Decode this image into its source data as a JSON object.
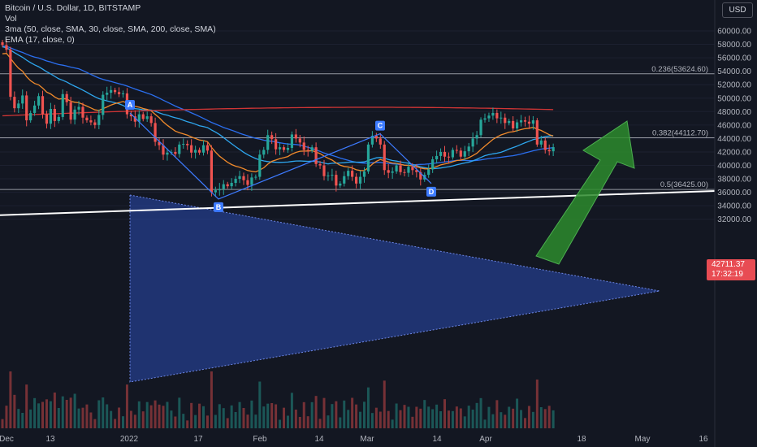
{
  "legend": {
    "symbol": "Bitcoin / U.S. Dollar, 1D, BITSTAMP",
    "vol": "Vol",
    "ma": "3ma (50, close, SMA, 30, close, SMA, 200, close, SMA)",
    "ema": "EMA (17, close, 0)"
  },
  "currency": "USD",
  "last_price": {
    "price": "42711.37",
    "countdown": "17:32:19",
    "color": "#e84c53"
  },
  "colors": {
    "background": "#131722",
    "up": "#26a69a",
    "down": "#ef5350",
    "triangle": "#2a4ab0",
    "sma50": "#2b6ff0",
    "sma30": "#2ea7ef",
    "sma200": "#d03535",
    "ema": "#f08a2b",
    "arrow": "#2d8b2d",
    "trendline": "#ffffff",
    "fib_line": "#9598a1"
  },
  "chart_data": {
    "type": "candlestick",
    "y_axis": {
      "min": 30800,
      "max": 62800,
      "ticks": [
        "60000.00",
        "58000.00",
        "56000.00",
        "54000.00",
        "52000.00",
        "50000.00",
        "48000.00",
        "46000.00",
        "44000.00",
        "42000.00",
        "40000.00",
        "38000.00",
        "36000.00",
        "34000.00",
        "32000.00"
      ]
    },
    "x_axis": {
      "labels": [
        "Dec",
        "13",
        "2022",
        "17",
        "Feb",
        "14",
        "Mar",
        "14",
        "Apr",
        "18",
        "May",
        "16"
      ]
    },
    "fib_levels": [
      {
        "label": "0.236(53624.60)",
        "value": 53624.6
      },
      {
        "label": "0.382(44112.70)",
        "value": 44112.7
      },
      {
        "label": "0.5(36425.00)",
        "value": 36425.0
      }
    ],
    "points": [
      {
        "label": "A",
        "value": 47800
      },
      {
        "label": "B",
        "value": 35000
      },
      {
        "label": "C",
        "value": 44700
      },
      {
        "label": "D",
        "value": 37300
      }
    ],
    "closes": [
      57900,
      57200,
      50200,
      48500,
      49200,
      50400,
      46700,
      47800,
      48900,
      50300,
      47600,
      46200,
      48400,
      46600,
      47200,
      50600,
      49400,
      46800,
      48300,
      48700,
      47100,
      46700,
      46400,
      46000,
      47500,
      50500,
      50800,
      51200,
      50900,
      50600,
      50700,
      47600,
      47300,
      46500,
      47600,
      46900,
      47300,
      46300,
      43500,
      43000,
      41600,
      41900,
      42000,
      41700,
      43100,
      43200,
      43000,
      41900,
      42300,
      41900,
      43000,
      42200,
      36000,
      36300,
      36500,
      37200,
      36900,
      37400,
      38000,
      38400,
      37800,
      37100,
      38200,
      38300,
      41600,
      42300,
      44500,
      43900,
      42400,
      42700,
      42300,
      42600,
      44600,
      44000,
      43400,
      42300,
      42200,
      42700,
      40200,
      40000,
      38400,
      38500,
      38600,
      37000,
      37300,
      38400,
      39200,
      38300,
      37300,
      38300,
      39100,
      43100,
      44400,
      44000,
      43100,
      39300,
      38900,
      39100,
      40000,
      39000,
      38900,
      39800,
      39300,
      39000,
      37900,
      38600,
      39400,
      40900,
      41400,
      42000,
      41300,
      41200,
      42300,
      42200,
      41300,
      42100,
      42800,
      44000,
      44500,
      46800,
      47000,
      47400,
      47800,
      47000,
      47100,
      46300,
      46600,
      45500,
      46400,
      46700,
      46500,
      46200,
      46700,
      43100,
      43700,
      42300,
      42100,
      42711
    ]
  }
}
